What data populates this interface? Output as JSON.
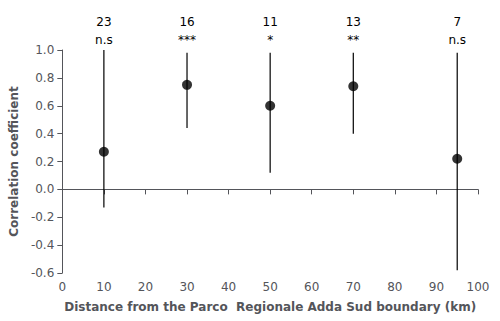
{
  "chart_data": {
    "type": "scatter",
    "x": [
      10,
      30,
      50,
      70,
      95
    ],
    "values": [
      0.27,
      0.75,
      0.6,
      0.74,
      0.22
    ],
    "upper": [
      1.0,
      0.98,
      0.98,
      0.98,
      0.98
    ],
    "lower": [
      -0.13,
      0.44,
      0.12,
      0.4,
      -0.58
    ],
    "annotations": [
      {
        "x": 10,
        "sample_size": "23",
        "significance": "n.s"
      },
      {
        "x": 30,
        "sample_size": "16",
        "significance": "***"
      },
      {
        "x": 50,
        "sample_size": "11",
        "significance": "*"
      },
      {
        "x": 70,
        "sample_size": "13",
        "significance": "**"
      },
      {
        "x": 95,
        "sample_size": "7",
        "significance": "n.s"
      }
    ],
    "xlabel": "Distance from the Parco  Regionale Adda Sud boundary (km)",
    "ylabel": "Correlation coefficient",
    "xlim": [
      0,
      100
    ],
    "ylim": [
      -0.6,
      1.0
    ],
    "xticks": [
      0,
      10,
      20,
      30,
      40,
      50,
      60,
      70,
      80,
      90,
      100
    ],
    "yticks": [
      -0.6,
      -0.4,
      -0.2,
      {
        "value": 0,
        "label": "0.0"
      },
      0.2,
      0.4,
      0.6,
      0.8,
      {
        "value": 1,
        "label": "1.0"
      }
    ],
    "color": "black",
    "grid": false
  }
}
